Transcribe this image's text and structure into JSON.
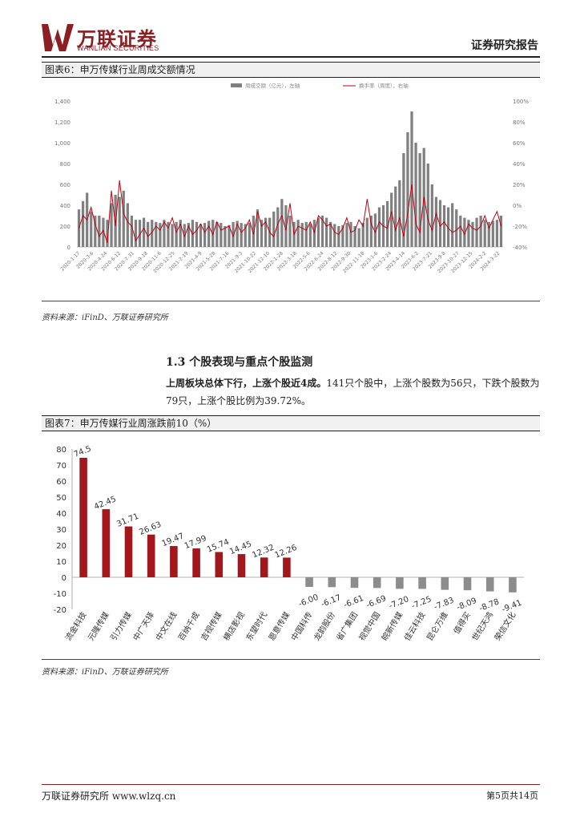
{
  "header": {
    "logo_cn": "万联证券",
    "logo_en": "WANLIAN SECURITIES",
    "doc_type": "证券研究报告"
  },
  "figure6": {
    "title": "图表6：申万传媒行业周成交额情况",
    "source": "资料来源：iFinD、万联证券研究所"
  },
  "section": {
    "heading": "1.3 个股表现与重点个股监测",
    "para_bold": "上周板块总体下行，上涨个股近4成。",
    "para_rest": "141只个股中，上涨个股数为56只，下跌个股数为79只，上涨个股比例为39.72%。"
  },
  "figure7": {
    "title": "图表7：申万传媒行业周涨跌前10（%）",
    "source": "资料来源：iFinD、万联证券研究所"
  },
  "footer": {
    "left": "万联证券研究所 www.wlzq.cn",
    "right": "第5页共14页"
  },
  "chart_data": [
    {
      "type": "bar",
      "series": [
        {
          "name": "周成交额（亿元），左轴",
          "type": "bar",
          "color": "#808080",
          "values": [
            360,
            440,
            520,
            340,
            300,
            300,
            280,
            260,
            420,
            500,
            480,
            540,
            420,
            300,
            260,
            260,
            280,
            240,
            260,
            240,
            230,
            260,
            240,
            220,
            240,
            260,
            220,
            230,
            260,
            240,
            220,
            230,
            250,
            260,
            240,
            230,
            200,
            210,
            240,
            250,
            230,
            220,
            230,
            300,
            360,
            260,
            280,
            280,
            340,
            380,
            460,
            400,
            300,
            240,
            260,
            230,
            240,
            220,
            260,
            280,
            300,
            280,
            240,
            220,
            200,
            210,
            230,
            240,
            200,
            180,
            230,
            280,
            300,
            320,
            380,
            400,
            440,
            520,
            580,
            640,
            900,
            1100,
            1300,
            1000,
            900,
            950,
            800,
            600,
            480,
            450,
            400,
            380,
            420,
            360,
            300,
            280,
            260,
            240,
            280,
            300,
            260,
            240,
            250,
            260,
            300
          ]
        },
        {
          "name": "换手率（周度），右轴",
          "type": "line",
          "color": "#c0000f",
          "values": [
            -22,
            -10,
            -14,
            -2,
            -18,
            -30,
            -24,
            -36,
            14,
            -20,
            24,
            -8,
            -16,
            -20,
            -34,
            -28,
            -22,
            -30,
            -26,
            -20,
            -24,
            -16,
            -22,
            -12,
            -26,
            -18,
            -30,
            -20,
            -28,
            -24,
            -18,
            -26,
            -20,
            -28,
            -16,
            -24,
            -22,
            -20,
            -30,
            -18,
            -26,
            -22,
            -14,
            -28,
            -6,
            -20,
            -16,
            -26,
            -30,
            -18,
            -10,
            -24,
            2,
            -28,
            -20,
            -22,
            -24,
            -16,
            -26,
            -10,
            -14,
            -20,
            -18,
            -26,
            -28,
            -22,
            -12,
            -26,
            -24,
            -14,
            -20,
            6,
            -18,
            -26,
            -16,
            -20,
            -22,
            -6,
            -24,
            -12,
            -30,
            -8,
            20,
            -18,
            -26,
            8,
            -14,
            -24,
            -8,
            -20,
            -16,
            -22,
            -26,
            -24,
            -20,
            -28,
            -18,
            -22,
            -24,
            -20,
            -10,
            -22,
            -14,
            -6,
            -20
          ]
        }
      ],
      "x_ticks": [
        "2020-1-17",
        "2020-3-6",
        "2020-4-24",
        "2020-6-12",
        "2020-7-31",
        "2020-9-18",
        "2020-11-6",
        "2020-12-25",
        "2021-2-19",
        "2021-4-9",
        "2021-5-28",
        "2021-7-16",
        "2021-9-3",
        "2021-10-22",
        "2021-12-10",
        "2022-1-28",
        "2022-3-18",
        "2022-5-6",
        "2022-6-24",
        "2022-8-12",
        "2022-9-30",
        "2022-11-18",
        "2023-1-6",
        "2023-2-24",
        "2023-4-14",
        "2023-6-2",
        "2023-7-21",
        "2023-9-8",
        "2023-10-27",
        "2023-12-15",
        "2024-2-2",
        "2024-3-22"
      ],
      "y_left_ticks": [
        "0",
        "200",
        "400",
        "600",
        "800",
        "1,000",
        "1,200",
        "1,400"
      ],
      "y_right_ticks": [
        "100%",
        "80%",
        "60%",
        "40%",
        "20%",
        "0%",
        "-20%",
        "-40%"
      ],
      "ylim_left": [
        0,
        1400
      ],
      "ylim_right": [
        -40,
        100
      ]
    },
    {
      "type": "bar",
      "categories": [
        "流金科技",
        "元隆传媒",
        "引力传媒",
        "中广天择",
        "中文在线",
        "百纳千成",
        "吉视传媒",
        "横店影视",
        "东望时代",
        "恩意传媒",
        "中国科传",
        "龙韵股份",
        "省广集团",
        "视觉中国",
        "皖新传媒",
        "佳云科技",
        "昆仑万维",
        "值得买",
        "世纪天鸿",
        "荣信文化"
      ],
      "values": [
        74.5,
        42.45,
        31.71,
        26.63,
        19.47,
        17.99,
        15.74,
        14.45,
        12.32,
        12.26,
        -6.0,
        -6.17,
        -6.61,
        -6.69,
        -7.2,
        -7.25,
        -7.83,
        -8.09,
        -8.78,
        -9.41
      ],
      "value_labels": [
        "74.5",
        "42.45",
        "31.71",
        "26.63",
        "19.47",
        "17.99",
        "15.74",
        "14.45",
        "12.32",
        "12.26",
        "-6.00",
        "-6.17",
        "-6.61",
        "-6.69",
        "-7.20",
        "-7.25",
        "-7.83",
        "-8.09",
        "-8.78",
        "-9.41"
      ],
      "y_ticks": [
        "80",
        "70",
        "60",
        "50",
        "40",
        "30",
        "20",
        "10",
        "0",
        "-10",
        "-20"
      ],
      "ylim": [
        -20,
        80
      ],
      "colors": {
        "positive": "#a3171c",
        "negative": "#8c8c8c"
      }
    }
  ]
}
